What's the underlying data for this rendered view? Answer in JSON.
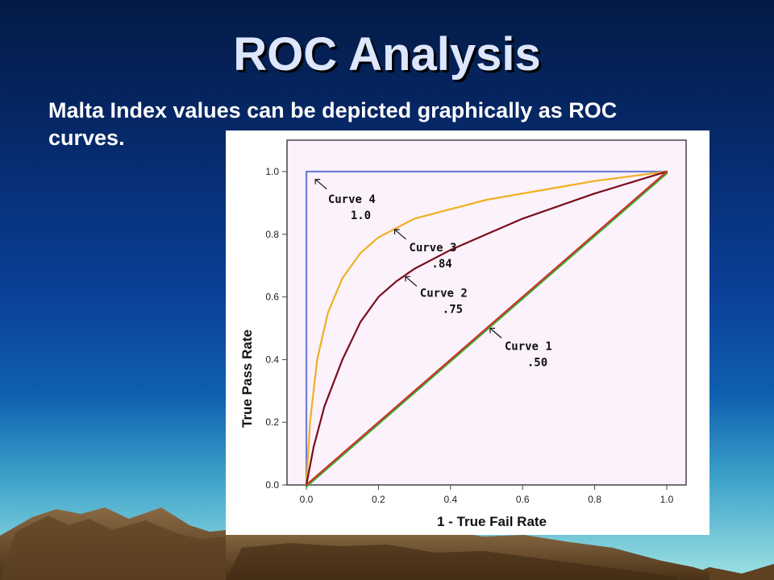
{
  "slide": {
    "title": "ROC Analysis",
    "subtitle_line1": "Malta Index values can be depicted graphically as ROC",
    "subtitle_line2": "curves."
  },
  "chart_data": {
    "type": "line",
    "xlabel": "1 - True Fail Rate",
    "ylabel": "True Pass Rate",
    "xlim": [
      0,
      1
    ],
    "ylim": [
      0,
      1
    ],
    "x_ticks": [
      "0.0",
      "0.2",
      "0.4",
      "0.6",
      "0.8",
      "1.0"
    ],
    "y_ticks": [
      "0.0",
      "0.2",
      "0.4",
      "0.6",
      "0.8",
      "1.0"
    ],
    "plot_background": "#fbf2fb",
    "series": [
      {
        "key": "curve4",
        "color": "#6f7fd6",
        "points": [
          [
            0,
            0
          ],
          [
            0,
            1
          ],
          [
            1,
            1
          ]
        ]
      },
      {
        "key": "curve3",
        "color": "#f0b020",
        "points": [
          [
            0,
            0
          ],
          [
            0.01,
            0.2
          ],
          [
            0.03,
            0.4
          ],
          [
            0.06,
            0.55
          ],
          [
            0.1,
            0.66
          ],
          [
            0.15,
            0.74
          ],
          [
            0.2,
            0.79
          ],
          [
            0.25,
            0.82
          ],
          [
            0.3,
            0.85
          ],
          [
            0.4,
            0.88
          ],
          [
            0.5,
            0.91
          ],
          [
            0.6,
            0.93
          ],
          [
            0.7,
            0.95
          ],
          [
            0.8,
            0.97
          ],
          [
            0.9,
            0.985
          ],
          [
            1,
            1
          ]
        ]
      },
      {
        "key": "curve2",
        "color": "#7a0c1e",
        "points": [
          [
            0,
            0
          ],
          [
            0.02,
            0.12
          ],
          [
            0.05,
            0.25
          ],
          [
            0.1,
            0.4
          ],
          [
            0.15,
            0.52
          ],
          [
            0.2,
            0.6
          ],
          [
            0.25,
            0.65
          ],
          [
            0.3,
            0.69
          ],
          [
            0.4,
            0.75
          ],
          [
            0.5,
            0.8
          ],
          [
            0.6,
            0.85
          ],
          [
            0.7,
            0.89
          ],
          [
            0.8,
            0.93
          ],
          [
            0.9,
            0.965
          ],
          [
            1,
            1
          ]
        ]
      },
      {
        "key": "curve1_green",
        "color": "#30b030",
        "points": [
          [
            0,
            0
          ],
          [
            1,
            1
          ]
        ]
      },
      {
        "key": "curve1",
        "color": "#d03030",
        "points": [
          [
            0,
            0
          ],
          [
            1,
            1
          ]
        ]
      }
    ],
    "annotations": [
      {
        "key": "curve4",
        "name": "Curve 4",
        "value": "1.0",
        "arrow_to": [
          0.025,
          0.975
        ],
        "label_at": [
          0.06,
          0.9
        ]
      },
      {
        "key": "curve3",
        "name": "Curve 3",
        "value": ".84",
        "arrow_to": [
          0.245,
          0.815
        ],
        "label_at": [
          0.285,
          0.745
        ]
      },
      {
        "key": "curve2",
        "name": "Curve 2",
        "value": ".75",
        "arrow_to": [
          0.275,
          0.665
        ],
        "label_at": [
          0.315,
          0.6
        ]
      },
      {
        "key": "curve1",
        "name": "Curve 1",
        "value": ".50",
        "arrow_to": [
          0.51,
          0.5
        ],
        "label_at": [
          0.55,
          0.43
        ]
      }
    ]
  }
}
